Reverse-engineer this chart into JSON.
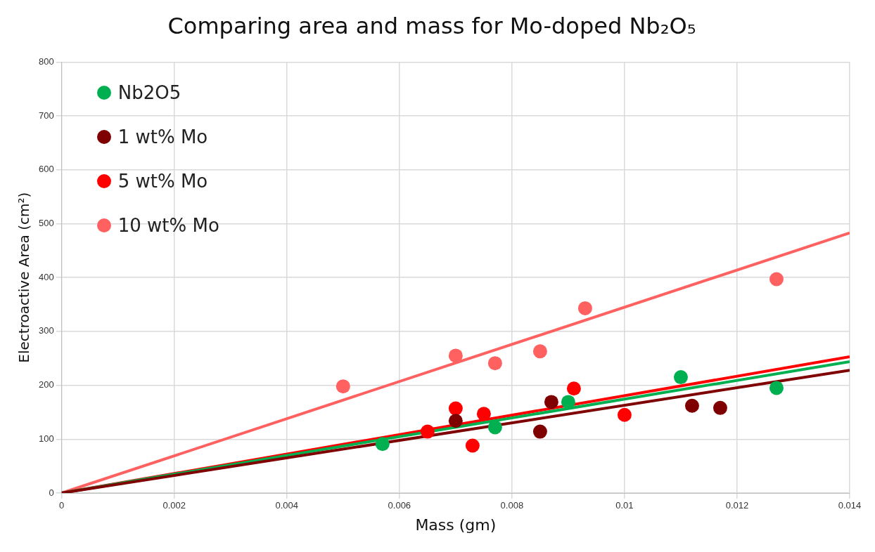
{
  "chart_data": {
    "type": "scatter",
    "title": "Comparing area and mass for Mo-doped Nb₂O₅",
    "xlabel": "Mass (gm)",
    "ylabel": "Electroactive Area (cm²)",
    "xlim": [
      0,
      0.014
    ],
    "xticks": [
      0,
      0.002,
      0.004,
      0.006,
      0.008,
      0.01,
      0.012,
      0.014
    ],
    "ylim": [
      0,
      800
    ],
    "yticks": [
      0,
      100,
      200,
      300,
      400,
      500,
      600,
      700,
      800
    ],
    "grid": true,
    "legend": "top left",
    "marker": "circle",
    "series": [
      {
        "name": "Nb2O5",
        "color": "#00b050",
        "x": [
          0.0057,
          0.0077,
          0.009,
          0.011,
          0.0127
        ],
        "values": [
          91,
          122,
          169,
          215,
          195
        ]
      },
      {
        "name": "1 wt% Mo",
        "color": "#7f0000",
        "x": [
          0.007,
          0.0085,
          0.0087,
          0.0112,
          0.0117
        ],
        "values": [
          134,
          114,
          169,
          162,
          158
        ]
      },
      {
        "name": "5 wt% Mo",
        "color": "#ff0000",
        "x": [
          0.0065,
          0.007,
          0.0073,
          0.0075,
          0.0091,
          0.01
        ],
        "values": [
          114,
          157,
          88,
          147,
          194,
          145
        ]
      },
      {
        "name": "10 wt% Mo",
        "color": "#ff6161",
        "x": [
          0.005,
          0.007,
          0.0077,
          0.0085,
          0.0093,
          0.0127
        ],
        "values": [
          198,
          255,
          241,
          263,
          343,
          397
        ]
      },
      {
        "type": "line",
        "marker": "none",
        "color": "#7f0000",
        "x": [
          0,
          0.014
        ],
        "values": [
          0,
          228
        ]
      },
      {
        "type": "line",
        "marker": "none",
        "color": "#00b050",
        "x": [
          0,
          0.014
        ],
        "values": [
          0,
          244
        ]
      },
      {
        "type": "line",
        "marker": "none",
        "color": "#ff0000",
        "x": [
          0,
          0.014
        ],
        "values": [
          0,
          253
        ]
      },
      {
        "type": "line",
        "marker": "none",
        "color": "#ff6161",
        "x": [
          0,
          0.014
        ],
        "values": [
          0,
          483
        ]
      }
    ]
  }
}
